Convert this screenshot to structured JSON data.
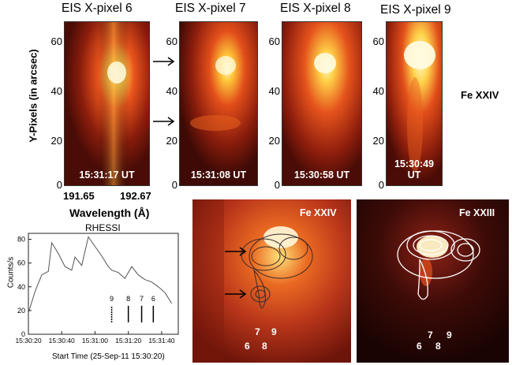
{
  "eis_panels": [
    {
      "title": "EIS X-pixel 6",
      "time": "15:31:17 UT"
    },
    {
      "title": "EIS X-pixel 7",
      "time": "15:31:08 UT"
    },
    {
      "title": "EIS X-pixel 8",
      "time": "15:30:58 UT"
    },
    {
      "title": "EIS X-pixel 9",
      "time": "15:30:49 UT"
    }
  ],
  "y_axis": {
    "label": "Y-Pixels (in arcsec)",
    "ticks": [
      "0",
      "20",
      "40",
      "60"
    ]
  },
  "x_axis": {
    "label": "Wavelength (Å)",
    "min_label": "191.65",
    "max_label": "192.67"
  },
  "line_label": "Fe XXIV",
  "rhessi_chart": {
    "title": "RHESSI",
    "ylabel": "Counts/s",
    "xlabel": "Start Time (25-Sep-11 15:30:20)",
    "yticks": [
      "0",
      "20",
      "40",
      "60",
      "80"
    ],
    "xticks": [
      "15:30:20",
      "15:30:40",
      "15:31:00",
      "15:31:20",
      "15:31:40"
    ],
    "markers": [
      "9",
      "8",
      "7",
      "6"
    ]
  },
  "chart_data": {
    "type": "line",
    "title": "RHESSI",
    "xlabel": "Start Time (25-Sep-11 15:30:20)",
    "ylabel": "Counts/s",
    "xlim": [
      0,
      90
    ],
    "ylim": [
      0,
      85
    ],
    "x": [
      0,
      4,
      8,
      12,
      14,
      18,
      22,
      26,
      28,
      32,
      36,
      40,
      44,
      48,
      50,
      54,
      58,
      62,
      66,
      70,
      74,
      78,
      82,
      86
    ],
    "series": [
      {
        "values": [
          18,
          36,
          50,
          53,
          77,
          68,
          57,
          54,
          65,
          58,
          82,
          74,
          66,
          57,
          54,
          52,
          47,
          57,
          50,
          46,
          44,
          40,
          35,
          26
        ]
      }
    ],
    "markers_x": [
      50,
      60,
      68,
      75
    ]
  },
  "bottom_panels": [
    {
      "label": "Fe XXIV",
      "numbers": {
        "n7": "7",
        "n9": "9",
        "n6": "6",
        "n8": "8"
      }
    },
    {
      "label": "Fe XXIII",
      "numbers": {
        "n7": "7",
        "n9": "9",
        "n6": "6",
        "n8": "8"
      }
    }
  ]
}
